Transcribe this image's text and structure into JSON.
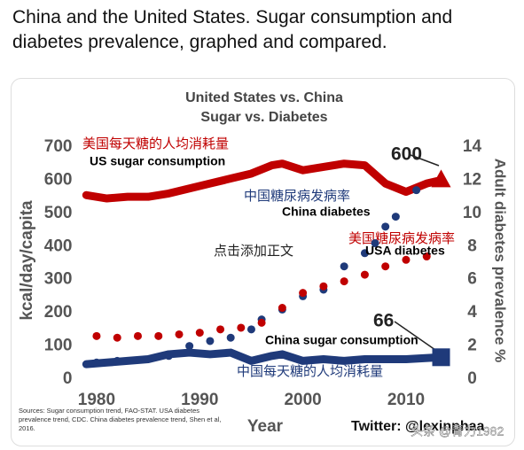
{
  "tweet_text": "China and the United States. Sugar consumption and diabetes prevalence, graphed and compared.",
  "chart_data": {
    "type": "line",
    "title": "United States vs. China",
    "subtitle": "Sugar vs. Diabetes",
    "x_label": "Year",
    "y_label": "kcal/day/capita",
    "y2_label": "Adult diabetes prevalence %",
    "xlim": [
      1978.5,
      2014
    ],
    "xticks": [
      1980,
      1990,
      2000,
      2010
    ],
    "ylim": [
      0,
      700
    ],
    "yticks": [
      0,
      100,
      200,
      300,
      400,
      500,
      600,
      700
    ],
    "y2lim": [
      0,
      14
    ],
    "y2ticks": [
      0,
      2,
      4,
      6,
      8,
      10,
      12,
      14
    ],
    "grid": false,
    "series": [
      {
        "name": "US sugar consumption",
        "color": "#c00000",
        "style": "line",
        "axis": "y",
        "x": [
          1979,
          1981,
          1983,
          1985,
          1987,
          1989,
          1991,
          1993,
          1995,
          1997,
          1998,
          2000,
          2002,
          2004,
          2006,
          2008,
          2010,
          2012,
          2013.4
        ],
        "values": [
          555,
          545,
          550,
          550,
          560,
          575,
          590,
          605,
          620,
          645,
          650,
          630,
          640,
          650,
          645,
          590,
          565,
          590,
          600
        ]
      },
      {
        "name": "China sugar consumption",
        "color": "#1f3a7a",
        "style": "line",
        "axis": "y",
        "x": [
          1979,
          1981,
          1983,
          1985,
          1987,
          1989,
          1991,
          1993,
          1995,
          1997,
          1998,
          2000,
          2002,
          2004,
          2006,
          2008,
          2010,
          2013.4
        ],
        "values": [
          45,
          50,
          55,
          60,
          75,
          80,
          75,
          80,
          55,
          70,
          75,
          55,
          60,
          55,
          60,
          60,
          60,
          66
        ]
      },
      {
        "name": "China diabetes",
        "color": "#1f3a7a",
        "style": "dots",
        "axis": "y2",
        "x": [
          1980,
          1982,
          1987,
          1989,
          1991,
          1993,
          1995,
          1996,
          1998,
          2000,
          2002,
          2004,
          2006,
          2007,
          2008,
          2009,
          2011
        ],
        "values": [
          1.0,
          1.1,
          1.4,
          2.0,
          2.3,
          2.5,
          3.0,
          3.6,
          4.2,
          5.0,
          5.4,
          6.8,
          7.6,
          8.2,
          9.2,
          9.8,
          11.4
        ]
      },
      {
        "name": "USA diabetes",
        "color": "#c00000",
        "style": "dots",
        "axis": "y2",
        "x": [
          1980,
          1982,
          1984,
          1986,
          1988,
          1990,
          1992,
          1994,
          1996,
          1998,
          2000,
          2002,
          2004,
          2006,
          2008,
          2010,
          2012
        ],
        "values": [
          2.6,
          2.5,
          2.6,
          2.6,
          2.7,
          2.8,
          3.0,
          3.1,
          3.4,
          4.3,
          5.2,
          5.6,
          5.9,
          6.3,
          6.8,
          7.2,
          7.4
        ]
      }
    ],
    "annotations": {
      "us_sugar_cn": "美国每天糖的人均消耗量",
      "china_diabetes_cn": "中国糖尿病发病率",
      "usa_diabetes_cn": "美国糖尿病发病率",
      "china_sugar_cn": "中国每天糖的人均消耗量",
      "us_end": "600",
      "china_end": "66",
      "placeholder": "点击添加正文"
    },
    "source": "Sources: Sugar consumption trend, FAO-STAT. USA diabetes prevalence trend, CDC. China diabetes prevalence trend, Shen et al, 2016.",
    "credit": "Twitter: @lexinphaa"
  },
  "watermark": "头条 @青力1982"
}
